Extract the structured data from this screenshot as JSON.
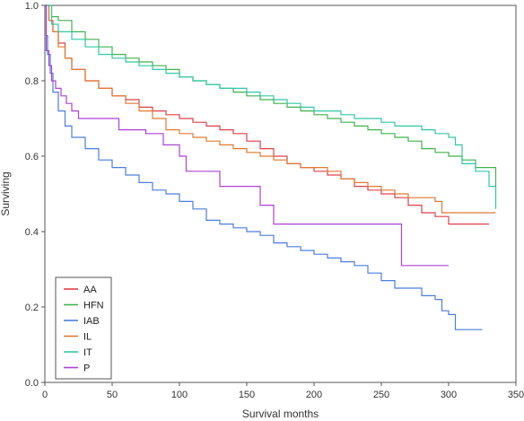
{
  "chart_data": {
    "type": "line",
    "step": true,
    "title": "",
    "xlabel": "Survival months",
    "ylabel": "Surviving",
    "xlim": [
      0,
      350
    ],
    "ylim": [
      0.0,
      1.0
    ],
    "xticks": [
      "0",
      "50",
      "100",
      "150",
      "200",
      "250",
      "300",
      "350"
    ],
    "yticks": [
      "0.0",
      "0.2",
      "0.4",
      "0.6",
      "0.8",
      "1.0"
    ],
    "grid": false,
    "legend_position": "bottom-left",
    "series": [
      {
        "name": "AA",
        "color": "#e0404a",
        "x": [
          0,
          3,
          6,
          10,
          15,
          20,
          30,
          40,
          50,
          60,
          70,
          80,
          90,
          100,
          110,
          120,
          130,
          140,
          150,
          160,
          170,
          180,
          190,
          200,
          210,
          220,
          230,
          240,
          250,
          260,
          270,
          280,
          290,
          300,
          310,
          320,
          330
        ],
        "y": [
          1.0,
          0.96,
          0.93,
          0.9,
          0.86,
          0.83,
          0.8,
          0.78,
          0.76,
          0.75,
          0.73,
          0.72,
          0.71,
          0.7,
          0.69,
          0.68,
          0.67,
          0.66,
          0.64,
          0.62,
          0.6,
          0.58,
          0.57,
          0.56,
          0.55,
          0.54,
          0.52,
          0.51,
          0.5,
          0.49,
          0.47,
          0.45,
          0.44,
          0.42,
          0.42,
          0.42,
          0.42
        ]
      },
      {
        "name": "HFN",
        "color": "#3fb34f",
        "x": [
          0,
          5,
          10,
          20,
          30,
          40,
          50,
          60,
          70,
          80,
          90,
          100,
          110,
          120,
          130,
          140,
          150,
          160,
          170,
          180,
          190,
          200,
          210,
          220,
          230,
          240,
          250,
          260,
          270,
          280,
          290,
          300,
          310,
          320,
          335
        ],
        "y": [
          1.0,
          0.97,
          0.96,
          0.93,
          0.91,
          0.89,
          0.87,
          0.86,
          0.85,
          0.84,
          0.83,
          0.81,
          0.8,
          0.79,
          0.78,
          0.77,
          0.76,
          0.75,
          0.74,
          0.73,
          0.72,
          0.71,
          0.7,
          0.69,
          0.68,
          0.67,
          0.66,
          0.65,
          0.64,
          0.62,
          0.61,
          0.6,
          0.59,
          0.57,
          0.52
        ]
      },
      {
        "name": "IAB",
        "color": "#4a7fe0",
        "x": [
          0,
          1,
          2,
          4,
          6,
          10,
          15,
          20,
          30,
          40,
          50,
          60,
          70,
          80,
          90,
          100,
          110,
          120,
          130,
          140,
          150,
          160,
          170,
          180,
          190,
          200,
          210,
          220,
          230,
          240,
          250,
          260,
          270,
          280,
          290,
          295,
          300,
          305,
          310,
          325
        ],
        "y": [
          1.0,
          0.92,
          0.87,
          0.82,
          0.77,
          0.72,
          0.68,
          0.65,
          0.62,
          0.59,
          0.57,
          0.55,
          0.53,
          0.51,
          0.5,
          0.48,
          0.46,
          0.43,
          0.42,
          0.41,
          0.4,
          0.39,
          0.37,
          0.36,
          0.35,
          0.34,
          0.33,
          0.32,
          0.31,
          0.29,
          0.27,
          0.25,
          0.25,
          0.23,
          0.22,
          0.19,
          0.18,
          0.14,
          0.14,
          0.14
        ]
      },
      {
        "name": "IL",
        "color": "#e07a30",
        "x": [
          0,
          3,
          6,
          10,
          15,
          20,
          30,
          40,
          50,
          60,
          70,
          80,
          90,
          100,
          110,
          120,
          130,
          140,
          150,
          160,
          170,
          180,
          190,
          200,
          210,
          220,
          230,
          240,
          250,
          260,
          270,
          280,
          290,
          295,
          335
        ],
        "y": [
          1.0,
          0.96,
          0.93,
          0.89,
          0.86,
          0.83,
          0.8,
          0.78,
          0.76,
          0.74,
          0.72,
          0.7,
          0.67,
          0.66,
          0.65,
          0.64,
          0.63,
          0.62,
          0.61,
          0.6,
          0.59,
          0.58,
          0.57,
          0.57,
          0.56,
          0.54,
          0.53,
          0.52,
          0.51,
          0.5,
          0.49,
          0.49,
          0.48,
          0.45,
          0.45
        ]
      },
      {
        "name": "IT",
        "color": "#30c8a8",
        "x": [
          0,
          5,
          10,
          20,
          30,
          40,
          50,
          60,
          70,
          80,
          90,
          100,
          110,
          120,
          130,
          140,
          150,
          160,
          170,
          180,
          190,
          200,
          210,
          220,
          230,
          240,
          250,
          260,
          270,
          280,
          290,
          300,
          305,
          310,
          320,
          330,
          335
        ],
        "y": [
          1.0,
          0.95,
          0.93,
          0.91,
          0.89,
          0.87,
          0.86,
          0.85,
          0.84,
          0.83,
          0.82,
          0.81,
          0.8,
          0.79,
          0.78,
          0.78,
          0.77,
          0.76,
          0.75,
          0.74,
          0.73,
          0.72,
          0.72,
          0.71,
          0.7,
          0.7,
          0.69,
          0.68,
          0.68,
          0.67,
          0.66,
          0.65,
          0.63,
          0.58,
          0.56,
          0.52,
          0.46
        ]
      },
      {
        "name": "P",
        "color": "#b040d8",
        "x": [
          0,
          1,
          3,
          5,
          8,
          12,
          16,
          20,
          25,
          55,
          75,
          88,
          100,
          105,
          130,
          160,
          170,
          265,
          300
        ],
        "y": [
          1.0,
          0.88,
          0.84,
          0.8,
          0.78,
          0.76,
          0.74,
          0.72,
          0.7,
          0.67,
          0.66,
          0.63,
          0.6,
          0.56,
          0.52,
          0.47,
          0.42,
          0.31,
          0.31
        ]
      }
    ]
  }
}
